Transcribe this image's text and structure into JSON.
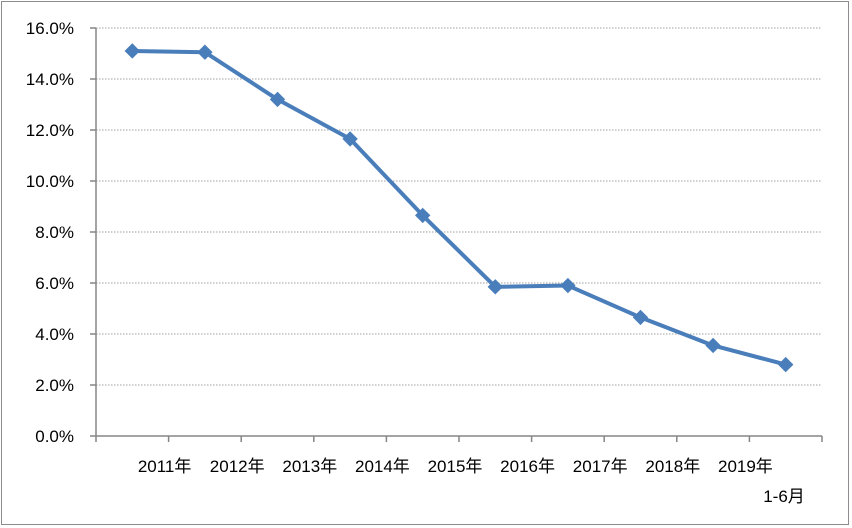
{
  "chart_data": {
    "type": "line",
    "title": "",
    "xlabel": "",
    "ylabel": "",
    "categories": [
      "2011年",
      "2012年",
      "2013年",
      "2014年",
      "2015年",
      "2016年",
      "2017年",
      "2018年",
      "2019年",
      "1-6月"
    ],
    "series": [
      {
        "values": [
          15.1,
          15.05,
          13.2,
          11.65,
          8.65,
          5.85,
          5.9,
          4.65,
          3.55,
          2.8
        ]
      }
    ],
    "ylim": [
      0,
      16
    ],
    "y_ticks": [
      "0.0%",
      "2.0%",
      "4.0%",
      "6.0%",
      "8.0%",
      "10.0%",
      "12.0%",
      "14.0%",
      "16.0%"
    ],
    "y_tick_values": [
      0,
      2,
      4,
      6,
      8,
      10,
      12,
      14,
      16
    ],
    "grid": true,
    "legend": "none",
    "marker": "diamond",
    "line_color": "#4a7ebb",
    "grid_color": "#a0a0a0"
  }
}
